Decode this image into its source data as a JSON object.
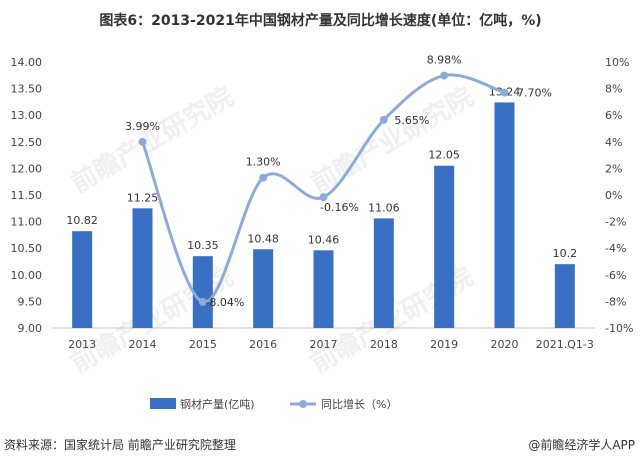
{
  "header": {
    "title": "图表6：2013-2021年中国钢材产量及同比增长速度(单位：亿吨，%)"
  },
  "footer": {
    "source": "资料来源：国家统计局 前瞻产业研究院整理",
    "brand": "@前瞻经济学人APP"
  },
  "watermark": {
    "text": "前瞻产业研究院"
  },
  "chart_data": {
    "type": "bar",
    "title": "图表6：2013-2021年中国钢材产量及同比增长速度(单位：亿吨，%)",
    "categories": [
      "2013",
      "2014",
      "2015",
      "2016",
      "2017",
      "2018",
      "2019",
      "2020",
      "2021.Q1-3"
    ],
    "series": [
      {
        "name": "钢材产量(亿吨)",
        "type": "bar",
        "axis": "left",
        "values": [
          10.82,
          11.25,
          10.35,
          10.48,
          10.46,
          11.06,
          12.05,
          13.24,
          10.2
        ],
        "labels": [
          "10.82",
          "11.25",
          "10.35",
          "10.48",
          "10.46",
          "11.06",
          "12.05",
          "13.24",
          "10.2"
        ],
        "color": "#3a70c4"
      },
      {
        "name": "同比增长（%）",
        "type": "line",
        "axis": "right",
        "values": [
          null,
          3.99,
          -8.04,
          1.3,
          -0.16,
          5.65,
          8.98,
          7.7,
          null
        ],
        "labels": [
          null,
          "3.99%",
          "-8.04%",
          "1.30%",
          "-0.16%",
          "5.65%",
          "8.98%",
          "7.70%",
          null
        ],
        "color": "#8eaadb"
      }
    ],
    "y_left": {
      "range": [
        9.0,
        14.0
      ],
      "ticks": [
        "9.00",
        "9.50",
        "10.00",
        "10.50",
        "11.00",
        "11.50",
        "12.00",
        "12.50",
        "13.00",
        "13.50",
        "14.00"
      ]
    },
    "y_right": {
      "range": [
        -10,
        10
      ],
      "ticks": [
        "-10%",
        "-8%",
        "-6%",
        "-4%",
        "-2%",
        "0%",
        "2%",
        "4%",
        "6%",
        "8%",
        "10%"
      ]
    },
    "legend": {
      "position": "bottom",
      "entries": [
        "钢材产量(亿吨)",
        "同比增长（%）"
      ]
    },
    "grid": false
  }
}
